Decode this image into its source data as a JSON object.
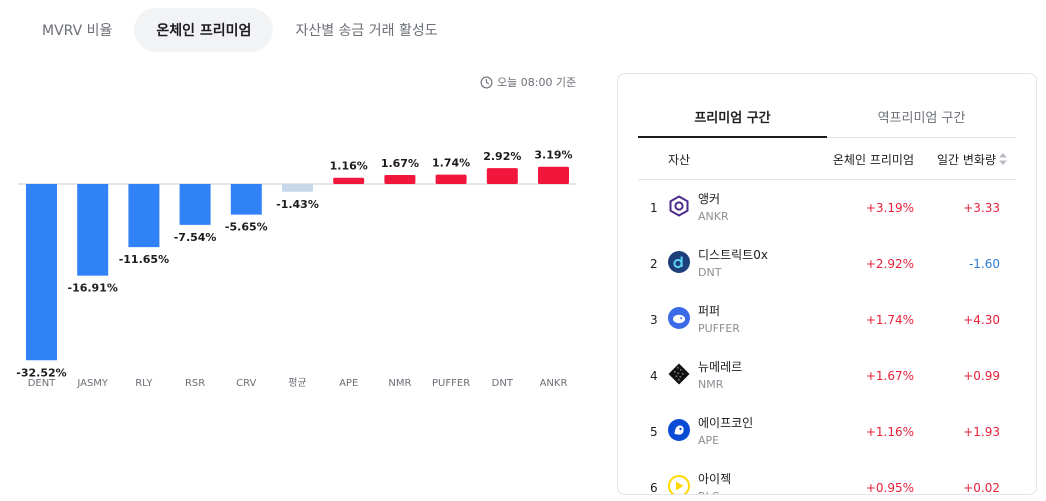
{
  "tabs": [
    {
      "label": "MVRV 비율",
      "active": false
    },
    {
      "label": "온체인 프리미엄",
      "active": true
    },
    {
      "label": "자산별 송금 거래 활성도",
      "active": false
    }
  ],
  "basis_time": "오늘 08:00 기준",
  "chart_data": {
    "type": "bar",
    "categories": [
      "DENT",
      "JASMY",
      "RLY",
      "RSR",
      "CRV",
      "평균",
      "APE",
      "NMR",
      "PUFFER",
      "DNT",
      "ANKR"
    ],
    "values": [
      -32.52,
      -16.91,
      -11.65,
      -7.54,
      -5.65,
      -1.43,
      1.16,
      1.67,
      1.74,
      2.92,
      3.19
    ],
    "labels": [
      "-32.52%",
      "-16.91%",
      "-11.65%",
      "-7.54%",
      "-5.65%",
      "-1.43%",
      "1.16%",
      "1.67%",
      "1.74%",
      "2.92%",
      "3.19%"
    ],
    "colors": {
      "negative": "#3182f6",
      "average": "#c8d7ea",
      "positive": "#f0163c"
    },
    "title": "",
    "xlabel": "",
    "ylabel": ""
  },
  "panel": {
    "tabs": [
      {
        "label": "프리미엄 구간",
        "active": true
      },
      {
        "label": "역프리미엄 구간",
        "active": false
      }
    ],
    "headers": {
      "asset": "자산",
      "premium": "온체인 프리미엄",
      "change": "일간 변화량"
    },
    "rows": [
      {
        "rank": "1",
        "name": "앵커",
        "ticker": "ANKR",
        "premium": "+3.19%",
        "change": "+3.33",
        "change_dir": "pos",
        "icon": "ankr-logo-icon"
      },
      {
        "rank": "2",
        "name": "디스트릭트0x",
        "ticker": "DNT",
        "premium": "+2.92%",
        "change": "-1.60",
        "change_dir": "neg",
        "icon": "dnt-logo-icon"
      },
      {
        "rank": "3",
        "name": "퍼퍼",
        "ticker": "PUFFER",
        "premium": "+1.74%",
        "change": "+4.30",
        "change_dir": "pos",
        "icon": "puffer-logo-icon"
      },
      {
        "rank": "4",
        "name": "뉴메레르",
        "ticker": "NMR",
        "premium": "+1.67%",
        "change": "+0.99",
        "change_dir": "pos",
        "icon": "nmr-logo-icon"
      },
      {
        "rank": "5",
        "name": "에이프코인",
        "ticker": "APE",
        "premium": "+1.16%",
        "change": "+1.93",
        "change_dir": "pos",
        "icon": "ape-logo-icon"
      },
      {
        "rank": "6",
        "name": "아이젝",
        "ticker": "RLC",
        "premium": "+0.95%",
        "change": "+0.02",
        "change_dir": "pos",
        "icon": "rlc-logo-icon"
      }
    ]
  }
}
